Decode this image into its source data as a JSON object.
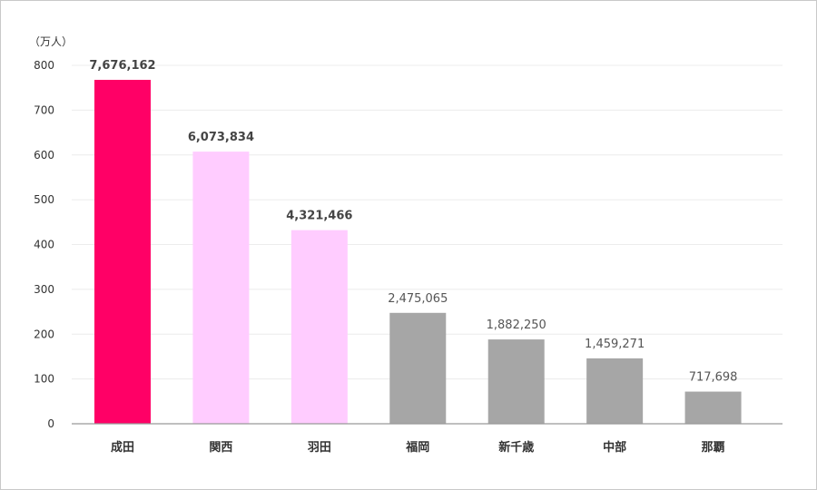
{
  "chart_data": {
    "type": "bar",
    "unit_label": "（万人）",
    "yticks": [
      0,
      100,
      200,
      300,
      400,
      500,
      600,
      700,
      800
    ],
    "ylim": [
      0,
      800
    ],
    "grid": true,
    "categories": [
      "成田",
      "関西",
      "羽田",
      "福岡",
      "新千歳",
      "中部",
      "那覇"
    ],
    "values": [
      7676162,
      6073834,
      4321466,
      2475065,
      1882250,
      1459271,
      717698
    ],
    "value_labels": [
      "7,676,162",
      "6,073,834",
      "4,321,466",
      "2,475,065",
      "1,882,250",
      "1,459,271",
      "717,698"
    ],
    "bar_colors": [
      "#ff0066",
      "#ffccff",
      "#ffccff",
      "#a6a6a6",
      "#a6a6a6",
      "#a6a6a6",
      "#a6a6a6"
    ],
    "bold_labels": [
      true,
      true,
      true,
      false,
      false,
      false,
      false
    ]
  }
}
